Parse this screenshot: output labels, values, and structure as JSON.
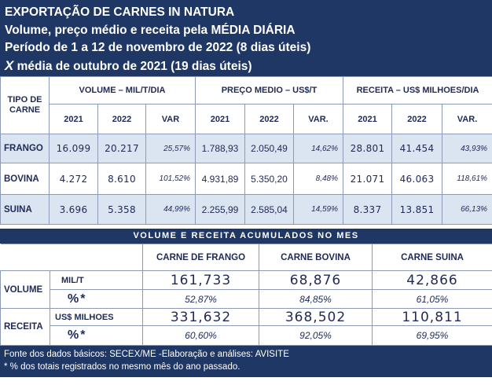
{
  "header": {
    "title": "EXPORTAÇÃO DE CARNES IN NATURA",
    "subtitle": "Volume, preço médio e receita pela MÉDIA DIÁRIA",
    "period": "Período de 1 a 12 de novembro de 2022 (8 dias úteis)",
    "compare_x": "X",
    "compare_text": " média de outubro de 2021 (19 dias úteis)"
  },
  "daily_table": {
    "row_header": "TIPO DE CARNE",
    "groups": [
      "VOLUME – MIL/T/DIA",
      "PREÇO MEDIO – US$/T",
      "RECEITA – US$ MILHOES/DIA"
    ],
    "subheaders": {
      "volume": [
        "2021",
        "2022",
        "VAR"
      ],
      "preco": [
        "2021",
        "2022",
        "VAR."
      ],
      "receita": [
        "2021",
        "2022",
        "VAR."
      ]
    },
    "rows": [
      {
        "label": "FRANGO",
        "vol_2021": "16.099",
        "vol_2022": "20.217",
        "vol_var": "25,57%",
        "preco_2021": "1.788,93",
        "preco_2022": "2.050,49",
        "preco_var": "14,62%",
        "rec_2021": "28.801",
        "rec_2022": "41.454",
        "rec_var": "43,93%"
      },
      {
        "label": "BOVINA",
        "vol_2021": "4.272",
        "vol_2022": "8.610",
        "vol_var": "101,52%",
        "preco_2021": "4.931,89",
        "preco_2022": "5.350,20",
        "preco_var": "8,48%",
        "rec_2021": "21.071",
        "rec_2022": "46.063",
        "rec_var": "118,61%"
      },
      {
        "label": "SUINA",
        "vol_2021": "3.696",
        "vol_2022": "5.358",
        "vol_var": "44,99%",
        "preco_2021": "2.255,99",
        "preco_2022": "2.585,04",
        "preco_var": "14,59%",
        "rec_2021": "8.337",
        "rec_2022": "13.851",
        "rec_var": "66,13%"
      }
    ]
  },
  "accumulated": {
    "band_title": "VOLUME E RECEITA ACUMULADOS NO MES",
    "columns": [
      "CARNE DE FRANGO",
      "CARNE BOVINA",
      "CARNE SUINA"
    ],
    "volume": {
      "label": "VOLUME",
      "unit": "MIL/T",
      "values": [
        "161,733",
        "68,876",
        "42,866"
      ],
      "pct_label": "%*",
      "pct": [
        "52,87%",
        "84,85%",
        "61,05%"
      ]
    },
    "receita": {
      "label": "RECEITA",
      "unit": "US$ MILHOES",
      "values": [
        "331,632",
        "368,502",
        "110,811"
      ],
      "pct_label": "%*",
      "pct": [
        "60,60%",
        "92,05%",
        "69,95%"
      ]
    }
  },
  "footer": {
    "source": "Fonte dos dados básicos: SECEX/ME -Elaboração e análises: AVISITE",
    "note": "* % dos totais registrados no mesmo mês do ano passado."
  },
  "colors": {
    "navy": "#1f3764",
    "light_blue": "#dbe4f1",
    "text": "#1f2a55"
  }
}
